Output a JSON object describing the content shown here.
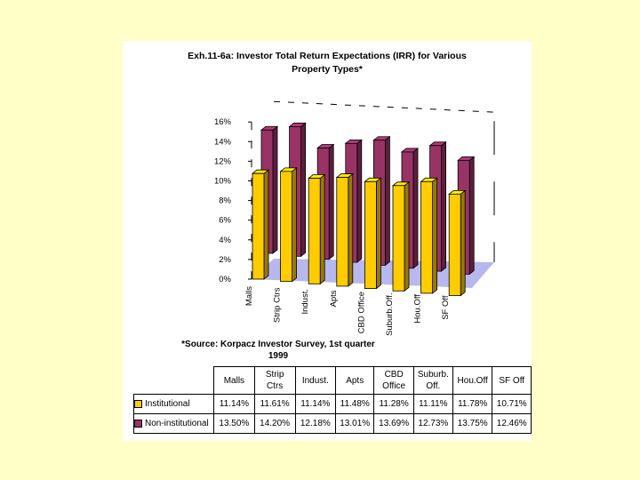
{
  "chart_data": {
    "type": "bar",
    "title_line1": "Exh.11-6a: Investor Total Return Expectations (IRR) for Various",
    "title_line2": "Property Types*",
    "categories": [
      "Malls",
      "Strip Ctrs",
      "Indust.",
      "Apts",
      "CBD Office",
      "Suburb.Off.",
      "Hou.Off",
      "SF Off"
    ],
    "table_headers": [
      [
        "Malls"
      ],
      [
        "Strip",
        "Ctrs"
      ],
      [
        "Indust."
      ],
      [
        "Apts"
      ],
      [
        "CBD",
        "Office"
      ],
      [
        "Suburb.",
        "Off."
      ],
      [
        "Hou.Off"
      ],
      [
        "SF Off"
      ]
    ],
    "y_ticks": [
      "0%",
      "2%",
      "4%",
      "6%",
      "8%",
      "10%",
      "12%",
      "14%",
      "16%"
    ],
    "ylim": [
      0,
      16
    ],
    "series": [
      {
        "name": "Institutional",
        "color": "#ffcc00",
        "values": [
          11.14,
          11.61,
          11.14,
          11.48,
          11.28,
          11.11,
          11.78,
          10.71
        ],
        "labels": [
          "11.14%",
          "11.61%",
          "11.14%",
          "11.48%",
          "11.28%",
          "11.11%",
          "11.78%",
          "10.71%"
        ]
      },
      {
        "name": "Non-institutional",
        "color": "#993366",
        "values": [
          13.5,
          14.2,
          12.18,
          13.01,
          13.69,
          12.73,
          13.75,
          12.46
        ],
        "labels": [
          "13.50%",
          "14.20%",
          "12.18%",
          "13.01%",
          "13.69%",
          "12.73%",
          "13.75%",
          "12.46%"
        ]
      }
    ],
    "source_line1": "*Source: Korpacz Investor Survey, 1st quarter",
    "source_line2": "1999"
  }
}
